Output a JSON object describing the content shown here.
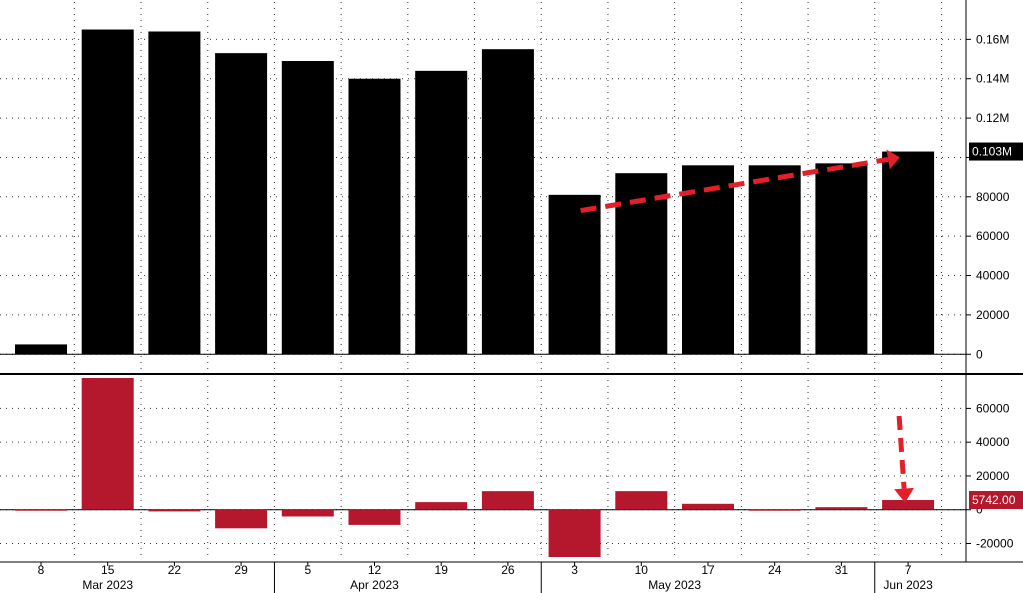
{
  "chart_data": [
    {
      "type": "bar",
      "panel": "top",
      "x": [
        "8",
        "15",
        "22",
        "29",
        "5",
        "12",
        "19",
        "26",
        "3",
        "10",
        "17",
        "24",
        "31",
        "7"
      ],
      "values": [
        5000,
        165000,
        164000,
        153000,
        149000,
        140000,
        144000,
        155000,
        81000,
        92000,
        96000,
        96000,
        97000,
        103000
      ],
      "bar_color": "#000000",
      "ylim": [
        -8000,
        180000
      ],
      "y_ticks": [
        0,
        20000,
        40000,
        60000,
        80000,
        100000,
        120000,
        140000,
        160000
      ],
      "y_tick_labels": [
        "0",
        "20000",
        "40000",
        "60000",
        "80000",
        "",
        "0.12M",
        "0.14M",
        "0.16M"
      ],
      "last_value_label": "0.103M",
      "grid": true,
      "annotation": "red dashed arrow trending up from the 3 bar to the 7 bar"
    },
    {
      "type": "bar",
      "panel": "bottom",
      "x": [
        "8",
        "15",
        "22",
        "29",
        "5",
        "12",
        "19",
        "26",
        "3",
        "10",
        "17",
        "24",
        "31",
        "7"
      ],
      "values": [
        -500,
        78000,
        -1000,
        -11000,
        -4000,
        -9000,
        4500,
        11000,
        -28000,
        11000,
        3500,
        -500,
        1500,
        5742
      ],
      "bar_color": "#b5172d",
      "ylim": [
        -28000,
        78000
      ],
      "y_ticks": [
        -20000,
        0,
        20000,
        40000,
        60000
      ],
      "y_tick_labels": [
        "-20000",
        "0",
        "20000",
        "40000",
        "60000"
      ],
      "last_value_label": "5742.00",
      "grid": true,
      "annotation": "red dashed arrow pointing down to the 7 bar"
    }
  ],
  "x_axis": {
    "day_labels": [
      "8",
      "15",
      "22",
      "29",
      "5",
      "12",
      "19",
      "26",
      "3",
      "10",
      "17",
      "24",
      "31",
      "7"
    ],
    "month_labels": [
      {
        "label": "Mar 2023",
        "at_index": 1
      },
      {
        "label": "Apr 2023",
        "at_index": 5
      },
      {
        "label": "May 2023",
        "at_index": 9.5
      },
      {
        "label": "Jun 2023",
        "at_index": 13
      }
    ]
  },
  "colors": {
    "up_bars": "#000000",
    "change_bars": "#b5172d",
    "arrow": "#e3202a",
    "label_bg": "#000000",
    "label_bg_red": "#b5172d"
  }
}
